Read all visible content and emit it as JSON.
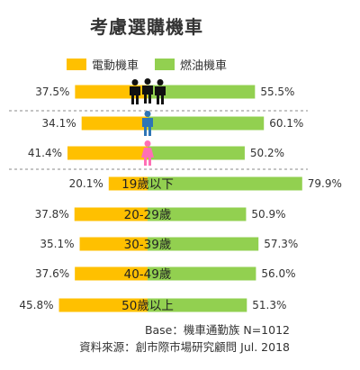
{
  "title": "考慮選購機車",
  "colors": {
    "electric": "#FFC000",
    "fuel": "#92D050",
    "male": "#2E75B6",
    "female": "#FF6FB5",
    "group": "#111111",
    "divider": "#888888"
  },
  "legend": [
    {
      "label": "電動機車",
      "color": "#FFC000"
    },
    {
      "label": "燃油機車",
      "color": "#92D050"
    }
  ],
  "chart_data": {
    "type": "bar",
    "title": "考慮選購機車",
    "series": [
      {
        "name": "電動機車",
        "values": [
          37.5,
          34.1,
          41.4,
          20.1,
          37.8,
          35.1,
          37.6,
          45.8
        ]
      },
      {
        "name": "燃油機車",
        "values": [
          55.5,
          60.1,
          50.2,
          79.9,
          50.9,
          57.3,
          56.0,
          51.3
        ]
      }
    ],
    "rows": [
      {
        "icon": "group-people-icon",
        "category": "",
        "electric_label": "37.5%",
        "fuel_label": "55.5%"
      },
      {
        "icon": "male-person-icon",
        "category": "",
        "electric_label": "34.1%",
        "fuel_label": "60.1%"
      },
      {
        "icon": "female-person-icon",
        "category": "",
        "electric_label": "41.4%",
        "fuel_label": "50.2%"
      },
      {
        "icon": "",
        "category": "19歲以下",
        "electric_label": "20.1%",
        "fuel_label": "79.9%"
      },
      {
        "icon": "",
        "category": "20-29歲",
        "electric_label": "37.8%",
        "fuel_label": "50.9%"
      },
      {
        "icon": "",
        "category": "30-39歲",
        "electric_label": "35.1%",
        "fuel_label": "57.3%"
      },
      {
        "icon": "",
        "category": "40-49歲",
        "electric_label": "37.6%",
        "fuel_label": "56.0%"
      },
      {
        "icon": "",
        "category": "50歲以上",
        "electric_label": "45.8%",
        "fuel_label": "51.3%"
      }
    ]
  },
  "notes": {
    "base": "Base：機車通勤族 N=1012",
    "source": "資料來源：創市際市場研究顧問 Jul. 2018"
  }
}
